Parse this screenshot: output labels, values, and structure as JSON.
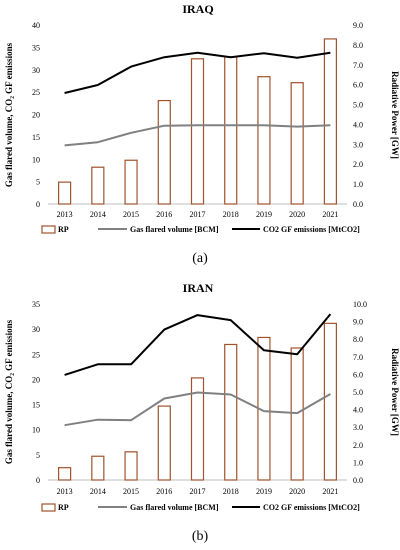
{
  "chart_data": [
    {
      "type": "bar+line",
      "title": "IRAQ",
      "panel_label": "(a)",
      "ylabel_left": "Gas flared volume, CO₂ GF emissions",
      "ylabel_right": "Radiative Power [GW]",
      "categories": [
        "2013",
        "2014",
        "2015",
        "2016",
        "2017",
        "2018",
        "2019",
        "2020",
        "2021"
      ],
      "ylim_left": [
        0,
        40
      ],
      "yticks_left": [
        "0",
        "5",
        "10",
        "15",
        "20",
        "25",
        "30",
        "35",
        "40"
      ],
      "ylim_right": [
        0,
        9
      ],
      "yticks_right": [
        "0.0",
        "1.0",
        "2.0",
        "3.0",
        "4.0",
        "5.0",
        "6.0",
        "7.0",
        "8.0",
        "9.0"
      ],
      "series": [
        {
          "name": "RP",
          "kind": "bar",
          "axis": "right",
          "color": "#a0522d",
          "values": [
            1.1,
            1.85,
            2.2,
            5.2,
            7.3,
            7.4,
            6.4,
            6.1,
            8.3
          ]
        },
        {
          "name": "Gas flared volume [BCM]",
          "kind": "line",
          "axis": "left",
          "color": "#808080",
          "values": [
            13.1,
            13.8,
            15.9,
            17.5,
            17.6,
            17.6,
            17.6,
            17.3,
            17.6
          ]
        },
        {
          "name": "CO2 GF emissions [MtCO2]",
          "kind": "line",
          "axis": "left",
          "color": "#000000",
          "values": [
            24.8,
            26.6,
            30.7,
            32.8,
            33.8,
            32.8,
            33.7,
            32.7,
            33.8
          ]
        }
      ]
    },
    {
      "type": "bar+line",
      "title": "IRAN",
      "panel_label": "(b)",
      "ylabel_left": "Gas flared volume, CO₂ GF emissions",
      "ylabel_right": "Radiative Power [GW]",
      "categories": [
        "2013",
        "2014",
        "2015",
        "2016",
        "2017",
        "2018",
        "2019",
        "2020",
        "2021"
      ],
      "ylim_left": [
        0,
        35
      ],
      "yticks_left": [
        "0",
        "5",
        "10",
        "15",
        "20",
        "25",
        "30",
        "35"
      ],
      "ylim_right": [
        0,
        10
      ],
      "yticks_right": [
        "0.0",
        "1.0",
        "2.0",
        "3.0",
        "4.0",
        "5.0",
        "6.0",
        "7.0",
        "8.0",
        "9.0",
        "10.0"
      ],
      "series": [
        {
          "name": "RP",
          "kind": "bar",
          "axis": "right",
          "color": "#a0522d",
          "values": [
            0.7,
            1.35,
            1.6,
            4.2,
            5.8,
            7.7,
            8.1,
            7.5,
            8.9
          ]
        },
        {
          "name": "Gas flared volume [BCM]",
          "kind": "line",
          "axis": "left",
          "color": "#808080",
          "values": [
            10.9,
            12.0,
            11.9,
            16.2,
            17.4,
            17.0,
            13.7,
            13.3,
            17.1
          ]
        },
        {
          "name": "CO2 GF emissions [MtCO2]",
          "kind": "line",
          "axis": "left",
          "color": "#000000",
          "values": [
            20.9,
            23.0,
            23.0,
            29.9,
            32.8,
            31.8,
            25.8,
            25.0,
            33.0
          ]
        }
      ]
    }
  ]
}
